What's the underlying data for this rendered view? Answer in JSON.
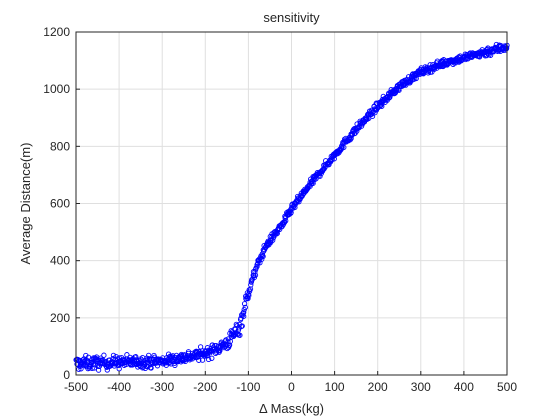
{
  "chart_data": {
    "type": "scatter",
    "title": "sensitivity",
    "xlabel": "Δ Mass(kg)",
    "ylabel": "Average Distance(m)",
    "xlim": [
      -500,
      500
    ],
    "ylim": [
      0,
      1200
    ],
    "xticks": [
      -500,
      -400,
      -300,
      -200,
      -100,
      0,
      100,
      200,
      300,
      400,
      500
    ],
    "yticks": [
      0,
      200,
      400,
      600,
      800,
      1000,
      1200
    ],
    "grid": true,
    "marker": "circle-open",
    "marker_color": "#0000ff",
    "curve": {
      "x": [
        -500,
        -400,
        -300,
        -200,
        -150,
        -120,
        -100,
        -80,
        -60,
        -40,
        -20,
        0,
        50,
        100,
        150,
        200,
        250,
        300,
        350,
        400,
        450,
        500
      ],
      "y": [
        40,
        45,
        48,
        75,
        110,
        170,
        290,
        380,
        450,
        490,
        530,
        580,
        680,
        770,
        860,
        940,
        1010,
        1060,
        1090,
        1110,
        1130,
        1150
      ],
      "spread": [
        22,
        20,
        18,
        18,
        22,
        30,
        20,
        15,
        12,
        12,
        12,
        12,
        12,
        12,
        12,
        12,
        12,
        12,
        12,
        12,
        14,
        16
      ]
    },
    "n_points": 1000
  }
}
